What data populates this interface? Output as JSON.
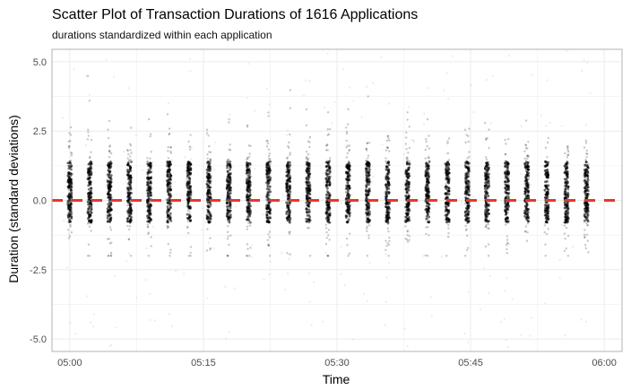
{
  "chart_data": {
    "type": "scatter",
    "title": "Scatter Plot of Transaction Durations of 1616 Applications",
    "subtitle": "durations standardized within each application",
    "xlabel": "Time",
    "ylabel": "Duration (standard deviations)",
    "xlim": [
      "04:58",
      "06:02"
    ],
    "ylim": [
      -5.45,
      5.45
    ],
    "x_ticks": [
      "05:00",
      "05:15",
      "05:30",
      "05:45",
      "06:00"
    ],
    "y_ticks": [
      -5.0,
      -2.5,
      0.0,
      2.5,
      5.0
    ],
    "y_tick_labels": [
      "-5.0",
      "-2.5",
      "0.0",
      "2.5",
      "5.0"
    ],
    "grid": true,
    "point_color": "#000000",
    "clusters": {
      "count": 27,
      "start_time": "05:00",
      "end_time": "05:58",
      "core_y_range": [
        -0.8,
        1.4
      ],
      "tail_y_range": [
        -2.0,
        4.5
      ],
      "outlier_y_range": [
        -5.3,
        5.4
      ]
    },
    "reference_line": {
      "y": 0.0,
      "style": "dashed",
      "color": "#e8352e"
    },
    "colors": {
      "panel_background": "#ffffff",
      "grid": "#ebebeb",
      "axis_text": "#4d4d4d"
    }
  }
}
